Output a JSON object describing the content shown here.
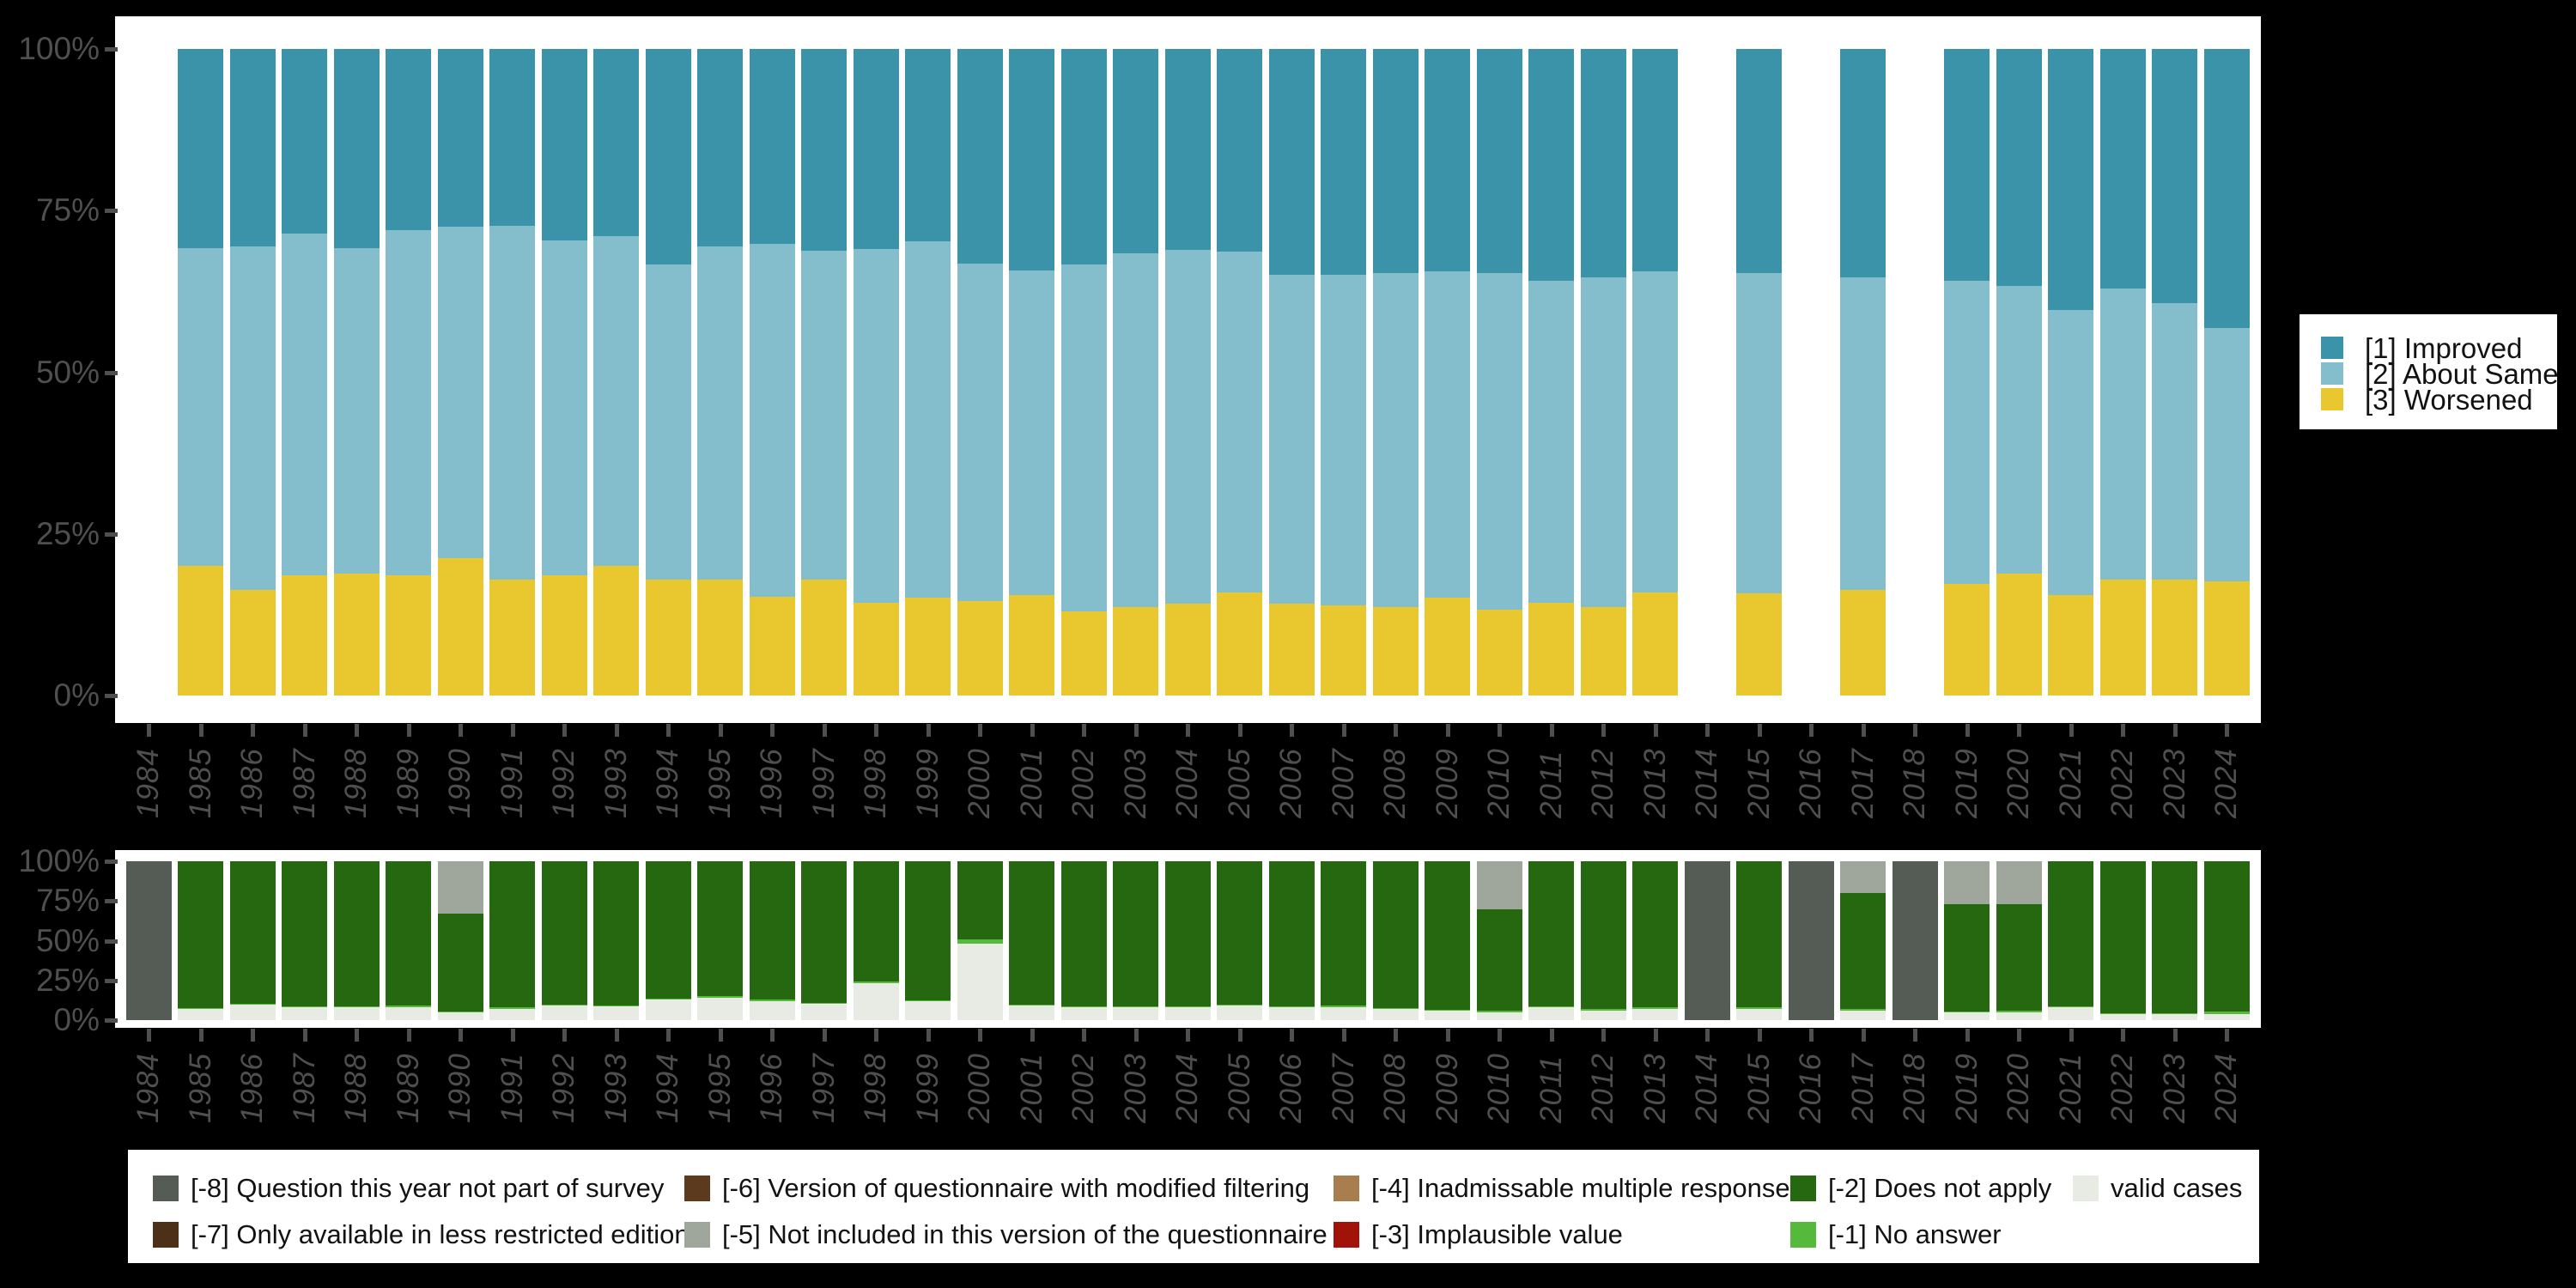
{
  "background_color": "#000000",
  "panel_color": "#ffffff",
  "axis_text_color": "#4f4f4f",
  "years": [
    1984,
    1985,
    1986,
    1987,
    1988,
    1989,
    1990,
    1991,
    1992,
    1993,
    1994,
    1995,
    1996,
    1997,
    1998,
    1999,
    2000,
    2001,
    2002,
    2003,
    2004,
    2005,
    2006,
    2007,
    2008,
    2009,
    2010,
    2011,
    2012,
    2013,
    2014,
    2015,
    2016,
    2017,
    2018,
    2019,
    2020,
    2021,
    2022,
    2023,
    2024
  ],
  "y_ticks": [
    "100%",
    "75%",
    "50%",
    "25%",
    "0%"
  ],
  "top_legend": {
    "items": [
      {
        "label": "[1] Improved",
        "color": "#3a93a8"
      },
      {
        "label": "[2] About Same",
        "color": "#84bdcb"
      },
      {
        "label": "[3] Worsened",
        "color": "#e8c82e"
      }
    ]
  },
  "bottom_legend": {
    "rows": [
      [
        {
          "label": "[-8] Question this year not part of survey",
          "color": "#555b55",
          "col": 0
        },
        {
          "label": "[-6] Version of questionnaire with modified filtering",
          "color": "#5b3a1e",
          "col": 1
        },
        {
          "label": "[-4] Inadmissable multiple response",
          "color": "#a87e4e",
          "col": 2
        },
        {
          "label": "[-2] Does not apply",
          "color": "#26680f",
          "col": 3
        },
        {
          "label": "valid cases",
          "color": "#e7ebe3",
          "col": 4
        }
      ],
      [
        {
          "label": "[-7] Only available in less restricted edition",
          "color": "#4c3118",
          "col": 0
        },
        {
          "label": "[-5] Not included in this version of the questionnaire",
          "color": "#9fa69b",
          "col": 1
        },
        {
          "label": "[-3] Implausible value",
          "color": "#a11309",
          "col": 2
        },
        {
          "label": "[-1] No answer",
          "color": "#55b93c",
          "col": 3
        }
      ]
    ]
  },
  "chart_data": [
    {
      "type": "bar",
      "stacked": true,
      "units": "percent",
      "title": "",
      "xlabel": "",
      "ylabel": "",
      "ylim": [
        0,
        100
      ],
      "legend_position": "right",
      "categories": [
        1984,
        1985,
        1986,
        1987,
        1988,
        1989,
        1990,
        1991,
        1992,
        1993,
        1994,
        1995,
        1996,
        1997,
        1998,
        1999,
        2000,
        2001,
        2002,
        2003,
        2004,
        2005,
        2006,
        2007,
        2008,
        2009,
        2010,
        2011,
        2012,
        2013,
        2014,
        2015,
        2016,
        2017,
        2018,
        2019,
        2020,
        2021,
        2022,
        2023,
        2024
      ],
      "series": [
        {
          "key": "worsened",
          "name": "[3] Worsened",
          "color": "#e8c82e",
          "values": [
            null,
            20,
            16.3,
            18.6,
            18.9,
            18.6,
            21.2,
            17.9,
            18.6,
            20,
            17.9,
            17.9,
            15.3,
            17.9,
            14.4,
            15.2,
            14.6,
            15.6,
            13,
            13.7,
            14.2,
            16,
            14.2,
            14,
            13.7,
            15.2,
            13.3,
            14.4,
            13.7,
            16,
            null,
            15.8,
            null,
            16.3,
            null,
            17.2,
            18.8,
            15.5,
            17.9,
            17.9,
            17.7
          ]
        },
        {
          "key": "about_same",
          "name": "[2] About Same",
          "color": "#84bdcb",
          "values": [
            null,
            49.2,
            53.2,
            52.8,
            50.3,
            53.4,
            51.3,
            54.7,
            51.8,
            51.1,
            48.8,
            51.6,
            54.6,
            50.9,
            54.7,
            55,
            52.2,
            50.2,
            53.7,
            54.7,
            54.7,
            52.6,
            50.9,
            51.1,
            51.6,
            50.4,
            52.1,
            49.8,
            51,
            49.6,
            null,
            49.5,
            null,
            48.4,
            null,
            47,
            44.5,
            44.1,
            45.1,
            42.8,
            39.1
          ]
        },
        {
          "key": "improved",
          "name": "[1] Improved",
          "color": "#3a93a8",
          "values": [
            null,
            30.8,
            30.5,
            28.6,
            30.8,
            28,
            27.5,
            27.4,
            29.6,
            28.9,
            33.3,
            30.5,
            30.1,
            31.2,
            30.9,
            29.8,
            33.2,
            34.2,
            33.3,
            31.6,
            31.1,
            31.4,
            34.9,
            34.9,
            34.7,
            34.4,
            34.6,
            35.8,
            35.3,
            34.4,
            null,
            34.7,
            null,
            35.3,
            null,
            35.8,
            36.7,
            40.4,
            37,
            39.3,
            43.2
          ]
        }
      ]
    },
    {
      "type": "bar",
      "stacked": true,
      "units": "percent",
      "title": "",
      "xlabel": "",
      "ylabel": "",
      "ylim": [
        0,
        100
      ],
      "legend_position": "bottom",
      "categories": [
        1984,
        1985,
        1986,
        1987,
        1988,
        1989,
        1990,
        1991,
        1992,
        1993,
        1994,
        1995,
        1996,
        1997,
        1998,
        1999,
        2000,
        2001,
        2002,
        2003,
        2004,
        2005,
        2006,
        2007,
        2008,
        2009,
        2010,
        2011,
        2012,
        2013,
        2014,
        2015,
        2016,
        2017,
        2018,
        2019,
        2020,
        2021,
        2022,
        2023,
        2024
      ],
      "series": [
        {
          "key": "valid_cases",
          "name": "valid cases",
          "color": "#e7ebe3",
          "values": [
            0,
            7,
            10,
            8,
            8,
            8,
            5,
            7,
            9,
            8.5,
            13,
            14,
            12,
            10,
            23,
            12,
            48,
            9,
            8,
            8,
            8,
            9,
            8,
            8,
            7,
            6,
            5,
            8,
            6,
            7,
            0,
            7,
            0,
            6,
            0,
            5,
            5,
            8,
            4,
            4,
            4
          ]
        },
        {
          "key": "no_answer",
          "name": "[-1] No answer",
          "color": "#55b93c",
          "values": [
            0,
            0.5,
            0.5,
            0.5,
            0.5,
            1,
            0.5,
            1,
            1,
            0.5,
            0.5,
            1,
            1,
            1,
            1.5,
            0.5,
            3,
            0.5,
            0.5,
            0.5,
            0.5,
            1,
            0.5,
            1,
            0.5,
            0.5,
            1,
            0.5,
            1,
            1,
            0,
            1,
            0,
            1,
            0,
            0.5,
            1,
            0.5,
            0.5,
            0.5,
            1.5
          ]
        },
        {
          "key": "does_not_apply",
          "name": "[-2] Does not apply",
          "color": "#26680f",
          "values": [
            0,
            92.5,
            89.5,
            91.5,
            91.5,
            91,
            61.5,
            92,
            90,
            91,
            86.5,
            85,
            87,
            89,
            75.5,
            87.5,
            49,
            90.5,
            91.5,
            91.5,
            91.5,
            90,
            91.5,
            91,
            92.5,
            93.5,
            64,
            91.5,
            93,
            92,
            0,
            92,
            0,
            73,
            0,
            67.5,
            67,
            91.5,
            95.5,
            95.5,
            94.5
          ]
        },
        {
          "key": "not_included",
          "name": "[-5] Not included in this version of the questionnaire",
          "color": "#9fa69b",
          "values": [
            0,
            0,
            0,
            0,
            0,
            0,
            33,
            0,
            0,
            0,
            0,
            0,
            0,
            0,
            0,
            0,
            0,
            0,
            0,
            0,
            0,
            0,
            0,
            0,
            0,
            0,
            30,
            0,
            0,
            0,
            0,
            0,
            0,
            20,
            0,
            27,
            27,
            0,
            0,
            0,
            0
          ]
        },
        {
          "key": "not_part_of_survey",
          "name": "[-8] Question this year not part of survey",
          "color": "#555b55",
          "values": [
            100,
            0,
            0,
            0,
            0,
            0,
            0,
            0,
            0,
            0,
            0,
            0,
            0,
            0,
            0,
            0,
            0,
            0,
            0,
            0,
            0,
            0,
            0,
            0,
            0,
            0,
            0,
            0,
            0,
            0,
            100,
            0,
            100,
            0,
            100,
            0,
            0,
            0,
            0,
            0,
            0
          ]
        }
      ]
    }
  ]
}
